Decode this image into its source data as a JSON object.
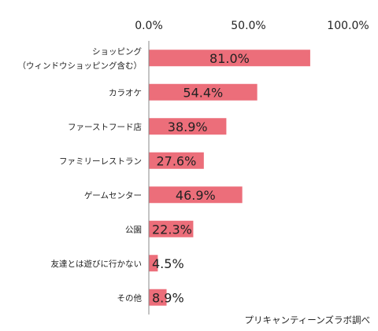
{
  "chart_data": {
    "type": "bar",
    "orientation": "horizontal",
    "categories": [
      [
        "ショッピング",
        "（ウィンドウショッピング含む）"
      ],
      [
        "カラオケ"
      ],
      [
        "ファーストフード店"
      ],
      [
        "ファミリーレストラン"
      ],
      [
        "ゲームセンター"
      ],
      [
        "公園"
      ],
      [
        "友達とは遊びに行かない"
      ],
      [
        "その他"
      ]
    ],
    "values": [
      81.0,
      54.4,
      38.9,
      27.6,
      46.9,
      22.3,
      4.5,
      8.9
    ],
    "value_labels": [
      "81.0%",
      "54.4%",
      "38.9%",
      "27.6%",
      "46.9%",
      "22.3%",
      "4.5%",
      "8.9%"
    ],
    "xlim": [
      0,
      100
    ],
    "x_ticks": [
      0,
      50,
      100
    ],
    "x_tick_labels": [
      "0.0%",
      "50.0%",
      "100.0%"
    ],
    "x_axis_position": "top",
    "grid": false,
    "bar_color": "#ec6e7a",
    "title": "",
    "xlabel": "",
    "ylabel": ""
  },
  "source_note": "プリキャンティーンズラボ調べ"
}
